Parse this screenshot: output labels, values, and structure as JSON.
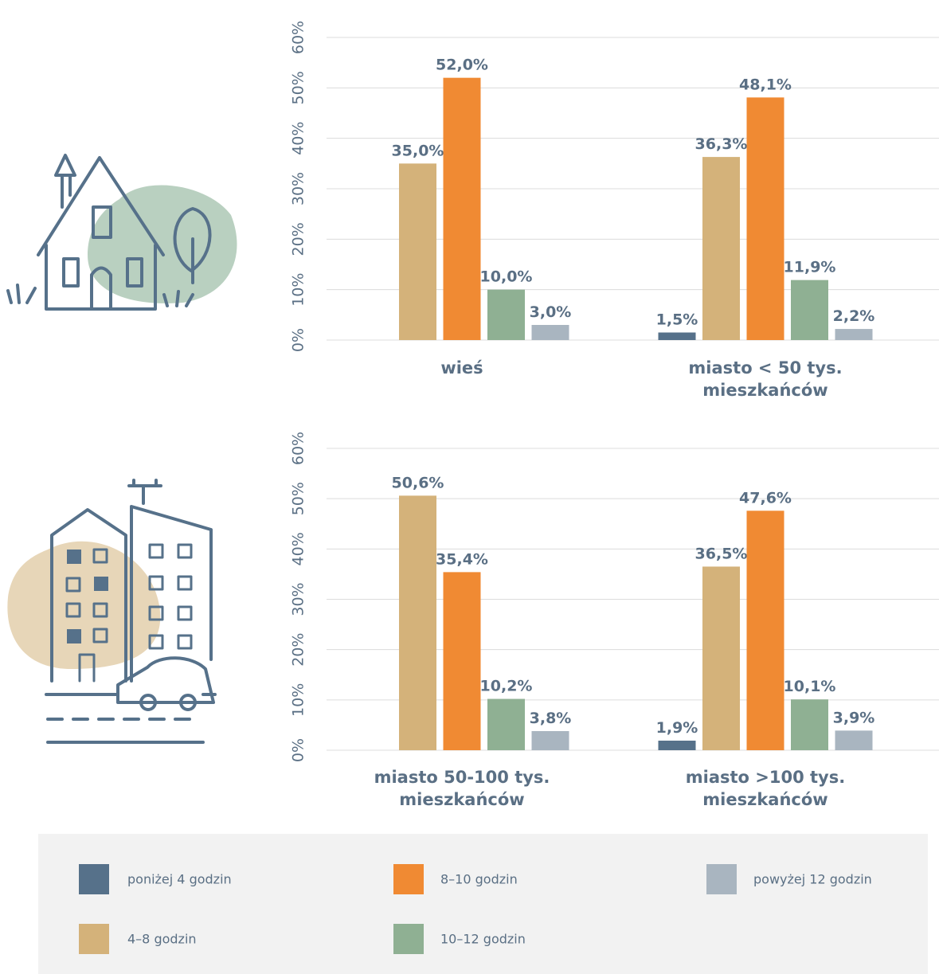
{
  "chart_data": [
    {
      "type": "bar",
      "categories": [
        "wieś",
        "miasto < 50 tys. mieszkańców"
      ],
      "series": [
        {
          "name": "poniżej 4 godzin",
          "color": "#56718a",
          "values": [
            null,
            1.5
          ],
          "value_labels": [
            null,
            "1,5%"
          ]
        },
        {
          "name": "4–8 godzin",
          "color": "#d4b27a",
          "values": [
            35.0,
            36.3
          ],
          "value_labels": [
            "35,0%",
            "36,3%"
          ]
        },
        {
          "name": "8–10 godzin",
          "color": "#f08a33",
          "values": [
            52.0,
            48.1
          ],
          "value_labels": [
            "52,0%",
            "48,1%"
          ]
        },
        {
          "name": "10–12 godzin",
          "color": "#8fb093",
          "values": [
            10.0,
            11.9
          ],
          "value_labels": [
            "10,0%",
            "11,9%"
          ]
        },
        {
          "name": "powyżej 12 godzin",
          "color": "#a9b5c0",
          "values": [
            3.0,
            2.2
          ],
          "value_labels": [
            "3,0%",
            "2,2%"
          ]
        }
      ],
      "ylim": [
        0,
        60
      ],
      "yticks": [
        {
          "value": 0,
          "label": "0%"
        },
        {
          "value": 10,
          "label": "10%"
        },
        {
          "value": 20,
          "label": "20%"
        },
        {
          "value": 30,
          "label": "30%"
        },
        {
          "value": 40,
          "label": "40%"
        },
        {
          "value": 50,
          "label": "50%"
        },
        {
          "value": 60,
          "label": "60%"
        }
      ],
      "grid": true
    },
    {
      "type": "bar",
      "categories": [
        "miasto 50-100 tys. mieszkańców",
        "miasto >100 tys. mieszkańców"
      ],
      "series": [
        {
          "color": "#56718a",
          "values": [
            null,
            1.9
          ],
          "value_labels": [
            null,
            "1,9%"
          ]
        },
        {
          "color": "#d4b27a",
          "values": [
            50.6,
            36.5
          ],
          "value_labels": [
            "50,6%",
            "36,5%"
          ]
        },
        {
          "color": "#f08a33",
          "values": [
            35.4,
            47.6
          ],
          "value_labels": [
            "35,4%",
            "47,6%"
          ]
        },
        {
          "color": "#8fb093",
          "values": [
            10.2,
            10.1
          ],
          "value_labels": [
            "10,2%",
            "10,1%"
          ]
        },
        {
          "color": "#a9b5c0",
          "values": [
            3.8,
            3.9
          ],
          "value_labels": [
            "3,8%",
            "3,9%"
          ]
        }
      ],
      "ylim": [
        0,
        60
      ],
      "yticks": [
        {
          "value": 0,
          "label": "0%"
        },
        {
          "value": 10,
          "label": "10%"
        },
        {
          "value": 20,
          "label": "20%"
        },
        {
          "value": 30,
          "label": "30%"
        },
        {
          "value": 40,
          "label": "40%"
        },
        {
          "value": 50,
          "label": "50%"
        },
        {
          "value": 60,
          "label": "60%"
        }
      ],
      "grid": true
    }
  ]
}
